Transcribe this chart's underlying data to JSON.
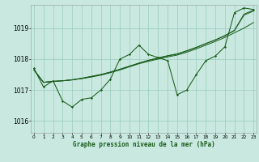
{
  "title": "Graphe pression niveau de la mer (hPa)",
  "bg_color": "#c8e8e0",
  "grid_color": "#99ccbb",
  "line_color": "#1a5c1a",
  "xlim": [
    -0.3,
    23.3
  ],
  "ylim": [
    1015.62,
    1019.75
  ],
  "yticks": [
    1016,
    1017,
    1018,
    1019
  ],
  "xticks": [
    0,
    1,
    2,
    3,
    4,
    5,
    6,
    7,
    8,
    9,
    10,
    11,
    12,
    13,
    14,
    15,
    16,
    17,
    18,
    19,
    20,
    21,
    22,
    23
  ],
  "series_wavy": [
    1017.7,
    1017.1,
    1017.3,
    1016.65,
    1016.45,
    1016.7,
    1016.75,
    1017.0,
    1017.35,
    1018.0,
    1018.15,
    1018.45,
    1018.15,
    1018.05,
    1017.95,
    1016.85,
    1017.0,
    1017.5,
    1017.95,
    1018.1,
    1018.4,
    1019.5,
    1019.65,
    1019.6
  ],
  "series_trend1": [
    1017.65,
    1017.25,
    1017.28,
    1017.3,
    1017.33,
    1017.37,
    1017.42,
    1017.48,
    1017.56,
    1017.65,
    1017.75,
    1017.85,
    1017.93,
    1018.0,
    1018.07,
    1018.13,
    1018.22,
    1018.33,
    1018.45,
    1018.57,
    1018.7,
    1018.85,
    1019.0,
    1019.18
  ],
  "series_trend2": [
    1017.65,
    1017.25,
    1017.28,
    1017.3,
    1017.33,
    1017.38,
    1017.44,
    1017.5,
    1017.58,
    1017.67,
    1017.77,
    1017.87,
    1017.96,
    1018.03,
    1018.1,
    1018.16,
    1018.26,
    1018.37,
    1018.5,
    1018.62,
    1018.75,
    1018.92,
    1019.42,
    1019.55
  ],
  "series_trend3": [
    1017.65,
    1017.25,
    1017.28,
    1017.3,
    1017.33,
    1017.38,
    1017.44,
    1017.5,
    1017.58,
    1017.67,
    1017.77,
    1017.87,
    1017.96,
    1018.04,
    1018.11,
    1018.17,
    1018.27,
    1018.38,
    1018.5,
    1018.62,
    1018.76,
    1018.93,
    1019.45,
    1019.58
  ]
}
